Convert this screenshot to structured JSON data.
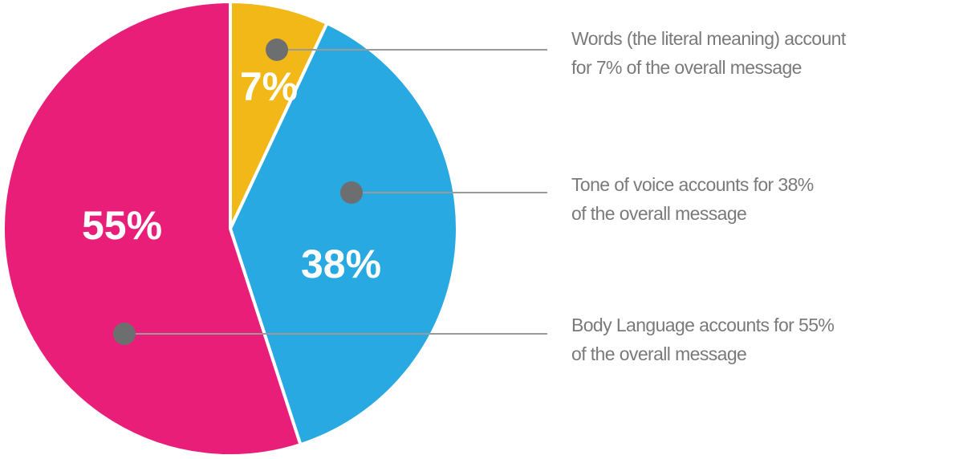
{
  "chart_data": {
    "type": "pie",
    "values": [
      7,
      38,
      55
    ],
    "value_labels": [
      "7%",
      "38%",
      "55%"
    ],
    "colors": [
      "#f2b817",
      "#29a9e1",
      "#e91e78"
    ],
    "annotations": [
      [
        "Words (the literal meaning) account",
        "for 7% of the overall message"
      ],
      [
        "Tone of voice accounts for 38%",
        "of the overall message"
      ],
      [
        "Body Language accounts for 55%",
        "of the overall message"
      ]
    ]
  }
}
